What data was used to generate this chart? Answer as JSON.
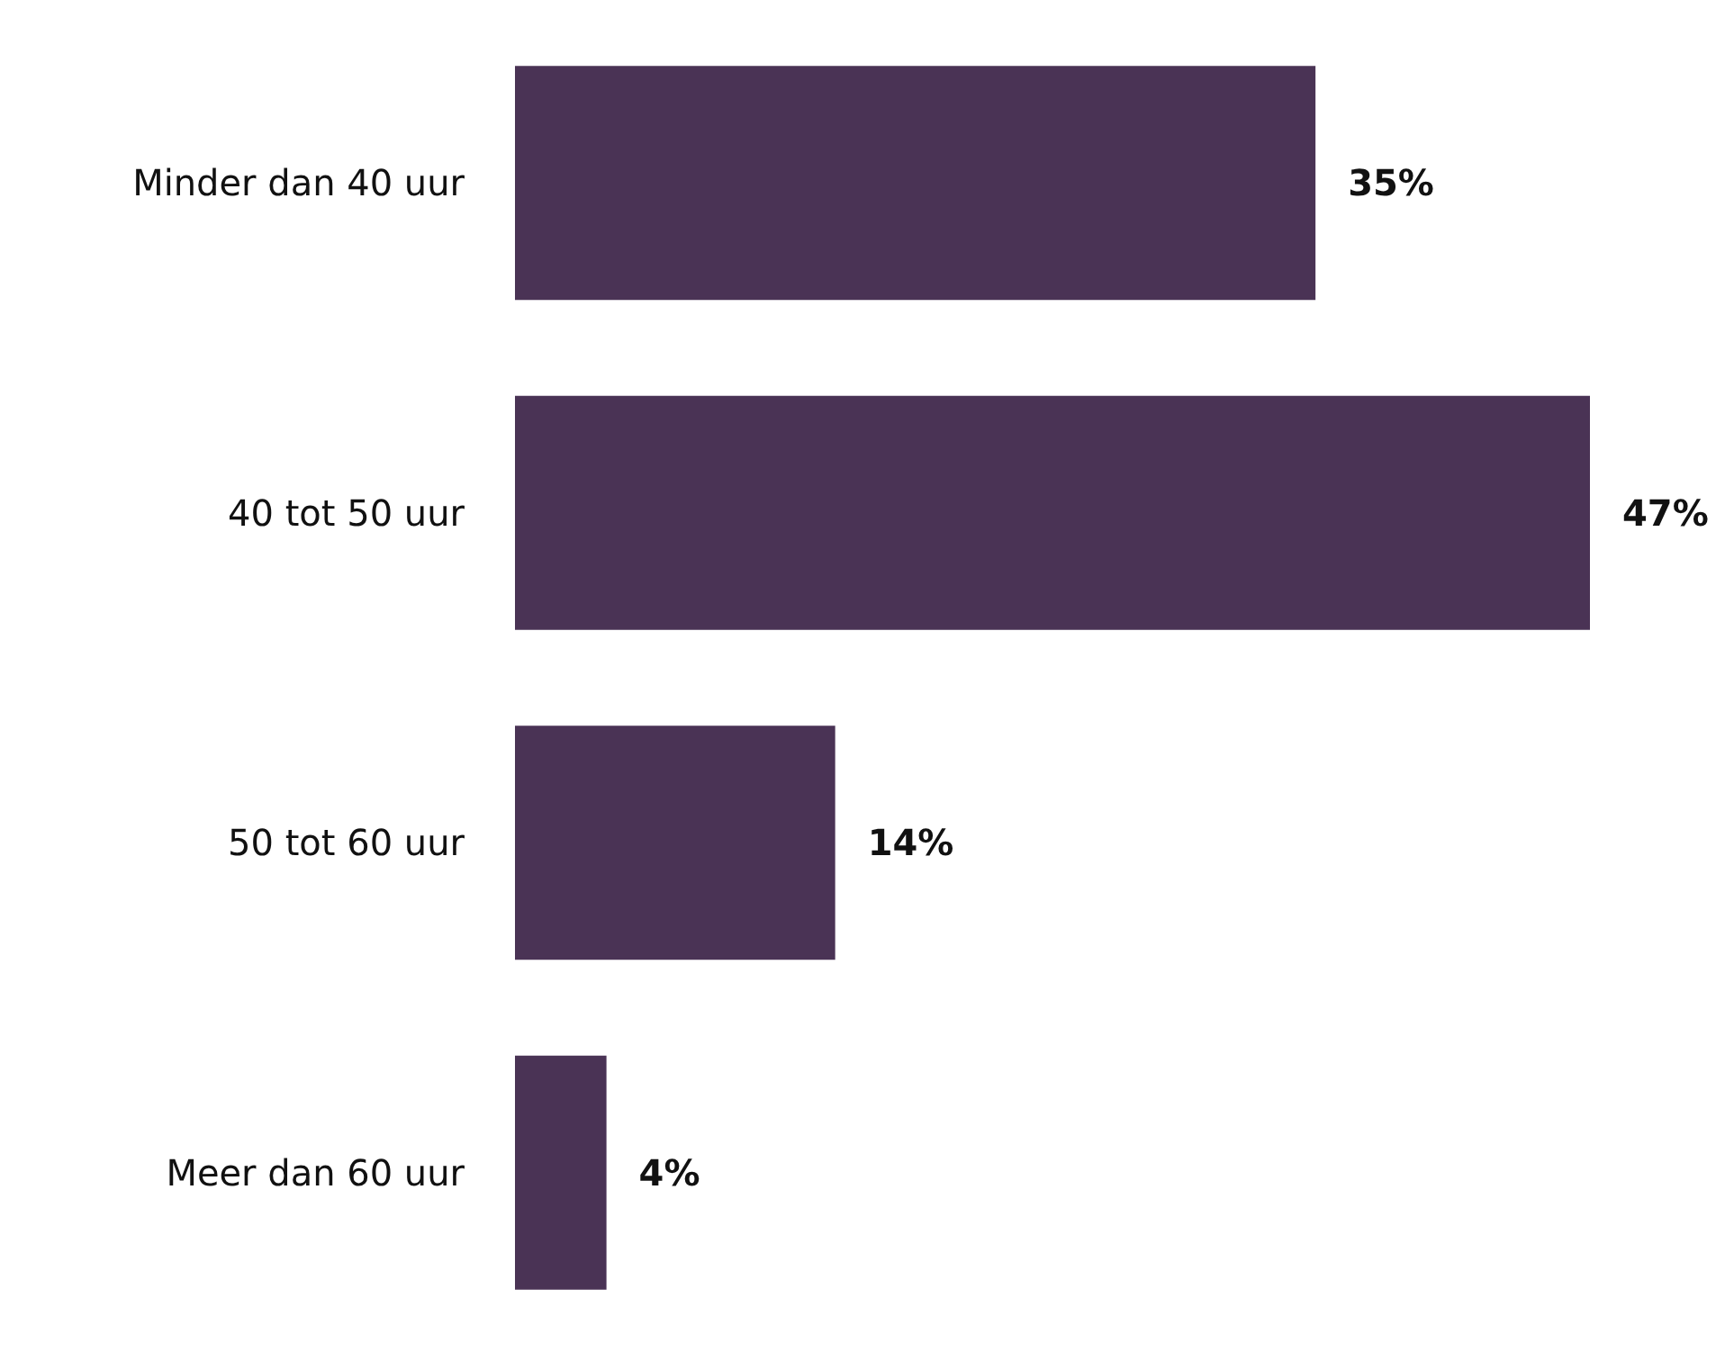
{
  "chart_data": {
    "type": "bar",
    "orientation": "horizontal",
    "categories": [
      "Minder dan 40 uur",
      "40 tot 50 uur",
      "50 tot 60 uur",
      "Meer dan 60 uur"
    ],
    "values": [
      35,
      47,
      14,
      4
    ],
    "value_labels": [
      "35%",
      "47%",
      "14%",
      "4%"
    ],
    "color": "#4a3355"
  }
}
